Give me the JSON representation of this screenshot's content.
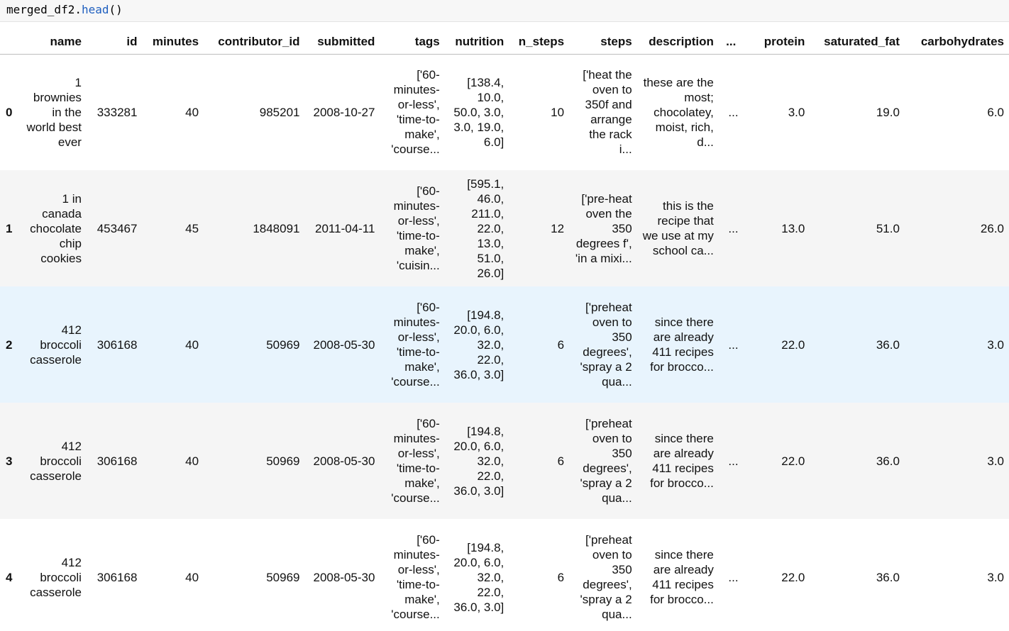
{
  "code": {
    "object": "merged_df2.",
    "method": "head",
    "parens": "()"
  },
  "table": {
    "columns": [
      "",
      "name",
      "id",
      "minutes",
      "contributor_id",
      "submitted",
      "tags",
      "nutrition",
      "n_steps",
      "steps",
      "description",
      "...",
      "protein",
      "saturated_fat",
      "carbohydrates"
    ],
    "rows": [
      {
        "index": "0",
        "name": "1 brownies in the world best ever",
        "id": "333281",
        "minutes": "40",
        "contributor_id": "985201",
        "submitted": "2008-10-27",
        "tags": "['60-minutes-or-less', 'time-to-make', 'course...",
        "nutrition": "[138.4, 10.0, 50.0, 3.0, 3.0, 19.0, 6.0]",
        "n_steps": "10",
        "steps": "['heat the oven to 350f and arrange the rack i...",
        "description": "these are the most; chocolatey, moist, rich, d...",
        "ellipsis": "...",
        "protein": "3.0",
        "saturated_fat": "19.0",
        "carbohydrates": "6.0"
      },
      {
        "index": "1",
        "name": "1 in canada chocolate chip cookies",
        "id": "453467",
        "minutes": "45",
        "contributor_id": "1848091",
        "submitted": "2011-04-11",
        "tags": "['60-minutes-or-less', 'time-to-make', 'cuisin...",
        "nutrition": "[595.1, 46.0, 211.0, 22.0, 13.0, 51.0, 26.0]",
        "n_steps": "12",
        "steps": "['pre-heat oven the 350 degrees f', 'in a mixi...",
        "description": "this is the recipe that we use at my school ca...",
        "ellipsis": "...",
        "protein": "13.0",
        "saturated_fat": "51.0",
        "carbohydrates": "26.0"
      },
      {
        "index": "2",
        "name": "412 broccoli casserole",
        "id": "306168",
        "minutes": "40",
        "contributor_id": "50969",
        "submitted": "2008-05-30",
        "tags": "['60-minutes-or-less', 'time-to-make', 'course...",
        "nutrition": "[194.8, 20.0, 6.0, 32.0, 22.0, 36.0, 3.0]",
        "n_steps": "6",
        "steps": "['preheat oven to 350 degrees', 'spray a 2 qua...",
        "description": "since there are already 411 recipes for brocco...",
        "ellipsis": "...",
        "protein": "22.0",
        "saturated_fat": "36.0",
        "carbohydrates": "3.0"
      },
      {
        "index": "3",
        "name": "412 broccoli casserole",
        "id": "306168",
        "minutes": "40",
        "contributor_id": "50969",
        "submitted": "2008-05-30",
        "tags": "['60-minutes-or-less', 'time-to-make', 'course...",
        "nutrition": "[194.8, 20.0, 6.0, 32.0, 22.0, 36.0, 3.0]",
        "n_steps": "6",
        "steps": "['preheat oven to 350 degrees', 'spray a 2 qua...",
        "description": "since there are already 411 recipes for brocco...",
        "ellipsis": "...",
        "protein": "22.0",
        "saturated_fat": "36.0",
        "carbohydrates": "3.0"
      },
      {
        "index": "4",
        "name": "412 broccoli casserole",
        "id": "306168",
        "minutes": "40",
        "contributor_id": "50969",
        "submitted": "2008-05-30",
        "tags": "['60-minutes-or-less', 'time-to-make', 'course...",
        "nutrition": "[194.8, 20.0, 6.0, 32.0, 22.0, 36.0, 3.0]",
        "n_steps": "6",
        "steps": "['preheat oven to 350 degrees', 'spray a 2 qua...",
        "description": "since there are already 411 recipes for brocco...",
        "ellipsis": "...",
        "protein": "22.0",
        "saturated_fat": "36.0",
        "carbohydrates": "3.0"
      }
    ]
  }
}
